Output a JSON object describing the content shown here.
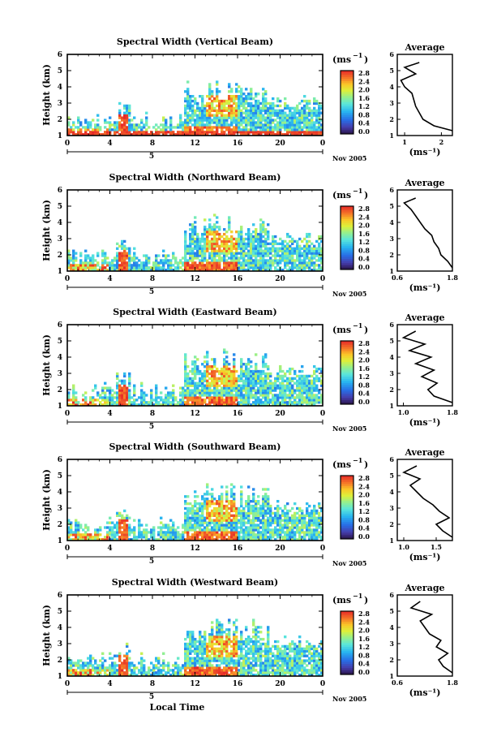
{
  "figure": {
    "time_axis_label": "Local Time",
    "date_label": "Nov 2005",
    "day_label": "5",
    "unit_label": "(ms",
    "unit_exp": "−1",
    "avg_title": "Average",
    "height_label": "Height (km)"
  },
  "chart_data": [
    {
      "type": "heatmap",
      "title": "Spectral Width (Vertical Beam)",
      "ylabel": "Height (km)",
      "xlabel": "",
      "x_ticks": [
        "0",
        "4",
        "8",
        "12",
        "16",
        "20",
        "0"
      ],
      "y_ticks": [
        "1",
        "2",
        "3",
        "4",
        "5",
        "6"
      ],
      "xlim": [
        0,
        24
      ],
      "ylim": [
        1,
        6
      ],
      "colorbar": {
        "ticks": [
          "2.8",
          "2.4",
          "2.0",
          "1.6",
          "1.2",
          "0.8",
          "0.4",
          "0.0"
        ],
        "range": [
          0.0,
          3.0
        ]
      },
      "average_profile": {
        "title": "Average",
        "xlabel": "(ms⁻¹)",
        "x_ticks": [
          "1",
          "2"
        ],
        "xlim": [
          0.8,
          2.3
        ],
        "ylim": [
          1,
          6
        ],
        "height": [
          1.3,
          1.6,
          2.0,
          2.4,
          2.8,
          3.2,
          3.6,
          4.0,
          4.4,
          4.8,
          5.2,
          5.5
        ],
        "width": [
          2.3,
          1.8,
          1.5,
          1.4,
          1.3,
          1.25,
          1.2,
          1.0,
          0.9,
          1.3,
          1.0,
          1.4
        ]
      }
    },
    {
      "type": "heatmap",
      "title": "Spectral Width (Northward Beam)",
      "ylabel": "Height (km)",
      "xlabel": "",
      "x_ticks": [
        "0",
        "4",
        "8",
        "12",
        "16",
        "20",
        "0"
      ],
      "y_ticks": [
        "1",
        "2",
        "3",
        "4",
        "5",
        "6"
      ],
      "xlim": [
        0,
        24
      ],
      "ylim": [
        1,
        6
      ],
      "colorbar": {
        "ticks": [
          "2.8",
          "2.4",
          "2.0",
          "1.6",
          "1.2",
          "0.8",
          "0.4",
          "0.0"
        ],
        "range": [
          0.0,
          3.0
        ]
      },
      "average_profile": {
        "title": "Average",
        "xlabel": "(ms⁻¹)",
        "x_ticks": [
          "0.6",
          "1.8"
        ],
        "xlim": [
          0.6,
          1.8
        ],
        "ylim": [
          1,
          6
        ],
        "height": [
          1.2,
          1.6,
          2.0,
          2.4,
          2.8,
          3.2,
          3.6,
          4.0,
          4.4,
          4.8,
          5.2,
          5.5
        ],
        "width": [
          1.8,
          1.7,
          1.55,
          1.5,
          1.4,
          1.35,
          1.2,
          1.1,
          1.0,
          0.9,
          0.75,
          1.0
        ]
      }
    },
    {
      "type": "heatmap",
      "title": "Spectral Width (Eastward Beam)",
      "ylabel": "Height (km)",
      "xlabel": "",
      "x_ticks": [
        "0",
        "4",
        "8",
        "12",
        "16",
        "20",
        "0"
      ],
      "y_ticks": [
        "1",
        "2",
        "3",
        "4",
        "5",
        "6"
      ],
      "xlim": [
        0,
        24
      ],
      "ylim": [
        1,
        6
      ],
      "colorbar": {
        "ticks": [
          "2.8",
          "2.4",
          "2.0",
          "1.6",
          "1.2",
          "0.8",
          "0.4",
          "0.0"
        ],
        "range": [
          0.0,
          3.0
        ]
      },
      "average_profile": {
        "title": "Average",
        "xlabel": "(ms⁻¹)",
        "x_ticks": [
          "1.0",
          "1.8"
        ],
        "xlim": [
          0.9,
          1.8
        ],
        "ylim": [
          1,
          6
        ],
        "height": [
          1.2,
          1.6,
          2.0,
          2.4,
          2.8,
          3.2,
          3.6,
          4.0,
          4.4,
          4.8,
          5.2,
          5.6
        ],
        "width": [
          1.8,
          1.5,
          1.4,
          1.55,
          1.3,
          1.5,
          1.2,
          1.45,
          1.1,
          1.35,
          1.0,
          1.2
        ]
      }
    },
    {
      "type": "heatmap",
      "title": "Spectral Width (Southward Beam)",
      "ylabel": "Height (km)",
      "xlabel": "",
      "x_ticks": [
        "0",
        "4",
        "8",
        "12",
        "16",
        "20",
        "0"
      ],
      "y_ticks": [
        "1",
        "2",
        "3",
        "4",
        "5",
        "6"
      ],
      "xlim": [
        0,
        24
      ],
      "ylim": [
        1,
        6
      ],
      "colorbar": {
        "ticks": [
          "2.8",
          "2.4",
          "2.0",
          "1.6",
          "1.2",
          "0.8",
          "0.4",
          "0.0"
        ],
        "range": [
          0.0,
          3.0
        ]
      },
      "average_profile": {
        "title": "Average",
        "xlabel": "(ms⁻¹)",
        "x_ticks": [
          "1.0",
          "1.5"
        ],
        "xlim": [
          0.9,
          1.75
        ],
        "ylim": [
          1,
          6
        ],
        "height": [
          1.2,
          1.6,
          2.0,
          2.4,
          2.8,
          3.2,
          3.6,
          4.0,
          4.4,
          4.8,
          5.2,
          5.6
        ],
        "width": [
          1.75,
          1.6,
          1.5,
          1.7,
          1.55,
          1.45,
          1.3,
          1.2,
          1.1,
          1.25,
          1.0,
          1.2
        ]
      }
    },
    {
      "type": "heatmap",
      "title": "Spectral Width (Westward Beam)",
      "ylabel": "Height (km)",
      "xlabel": "Local Time",
      "x_ticks": [
        "0",
        "4",
        "8",
        "12",
        "16",
        "20",
        "0"
      ],
      "y_ticks": [
        "1",
        "2",
        "3",
        "4",
        "5",
        "6"
      ],
      "xlim": [
        0,
        24
      ],
      "ylim": [
        1,
        6
      ],
      "colorbar": {
        "ticks": [
          "2.8",
          "2.4",
          "2.0",
          "1.6",
          "1.2",
          "0.8",
          "0.4",
          "0.0"
        ],
        "range": [
          0.0,
          3.0
        ]
      },
      "average_profile": {
        "title": "Average",
        "xlabel": "(ms⁻¹)",
        "x_ticks": [
          "0.6",
          "1.8"
        ],
        "xlim": [
          0.6,
          1.8
        ],
        "ylim": [
          1,
          6
        ],
        "height": [
          1.2,
          1.6,
          2.0,
          2.4,
          2.8,
          3.2,
          3.6,
          4.0,
          4.4,
          4.8,
          5.2,
          5.6
        ],
        "width": [
          1.8,
          1.6,
          1.5,
          1.7,
          1.45,
          1.55,
          1.3,
          1.2,
          1.1,
          1.35,
          0.9,
          1.1
        ]
      }
    }
  ]
}
